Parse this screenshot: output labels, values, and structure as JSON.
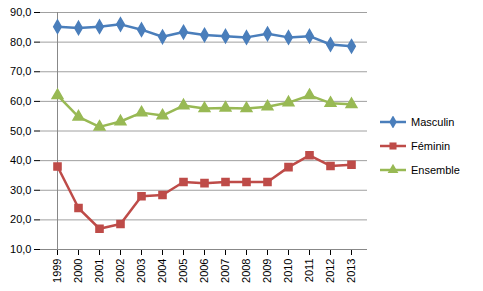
{
  "chart_data": {
    "type": "line",
    "categories": [
      "1999",
      "2000",
      "2001",
      "2002",
      "2003",
      "2004",
      "2005",
      "2006",
      "2007",
      "2008",
      "2009",
      "2010",
      "2011",
      "2012",
      "2013"
    ],
    "series": [
      {
        "name": "Masculin",
        "color": "#4a7ebb",
        "marker": "diamond",
        "values": [
          85.2,
          84.8,
          85.2,
          86.0,
          84.2,
          81.8,
          83.4,
          82.4,
          82.0,
          81.6,
          82.8,
          81.6,
          82.0,
          79.2,
          78.6
        ]
      },
      {
        "name": "Féminin",
        "color": "#be4b48",
        "marker": "square",
        "values": [
          38.0,
          24.0,
          17.0,
          18.6,
          28.0,
          28.4,
          32.8,
          32.4,
          32.8,
          32.8,
          32.8,
          37.8,
          41.8,
          38.2,
          38.6
        ]
      },
      {
        "name": "Ensemble",
        "color": "#98b954",
        "marker": "triangle",
        "values": [
          62.0,
          54.8,
          51.4,
          53.2,
          56.2,
          55.2,
          58.6,
          57.6,
          57.8,
          57.6,
          58.2,
          59.6,
          62.0,
          59.4,
          59.0
        ]
      }
    ],
    "ylim": [
      10,
      90
    ],
    "yticks": [
      {
        "value": 10,
        "label": "10,0"
      },
      {
        "value": 20,
        "label": "20,0"
      },
      {
        "value": 30,
        "label": "30,0"
      },
      {
        "value": 40,
        "label": "40,0"
      },
      {
        "value": 50,
        "label": "50,0"
      },
      {
        "value": 60,
        "label": "60,0"
      },
      {
        "value": 70,
        "label": "70,0"
      },
      {
        "value": 80,
        "label": "80,0"
      },
      {
        "value": 90,
        "label": "90,0"
      }
    ],
    "grid": true,
    "legend": "right"
  }
}
